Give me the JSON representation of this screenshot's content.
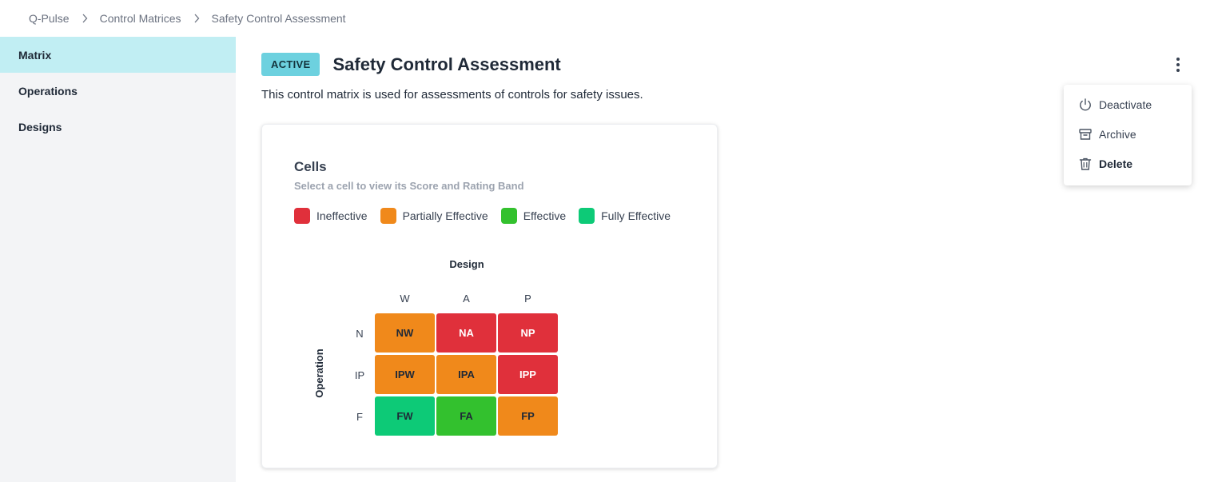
{
  "breadcrumb": [
    "Q-Pulse",
    "Control Matrices",
    "Safety Control Assessment"
  ],
  "sidebar": {
    "items": [
      {
        "label": "Matrix",
        "active": true
      },
      {
        "label": "Operations",
        "active": false
      },
      {
        "label": "Designs",
        "active": false
      }
    ]
  },
  "header": {
    "status": "ACTIVE",
    "title": "Safety Control Assessment",
    "description": "This control matrix is used for assessments of controls for safety issues."
  },
  "menu": {
    "items": [
      {
        "label": "Deactivate",
        "icon": "power-icon"
      },
      {
        "label": "Archive",
        "icon": "archive-icon"
      },
      {
        "label": "Delete",
        "icon": "trash-icon"
      }
    ]
  },
  "cells_card": {
    "title": "Cells",
    "subtitle": "Select a cell to view its Score and Rating Band",
    "legend": [
      {
        "label": "Ineffective",
        "color": "#e0303b"
      },
      {
        "label": "Partially Effective",
        "color": "#f0891b"
      },
      {
        "label": "Effective",
        "color": "#33c12e"
      },
      {
        "label": "Fully Effective",
        "color": "#0dca77"
      }
    ],
    "x_axis_title": "Design",
    "y_axis_title": "Operation",
    "columns": [
      "W",
      "A",
      "P"
    ],
    "rows": [
      "N",
      "IP",
      "F"
    ],
    "cells": [
      [
        {
          "label": "NW",
          "color": "#f0891b",
          "text_color": "#1f2937"
        },
        {
          "label": "NA",
          "color": "#e0303b",
          "text_color": "#ffffff"
        },
        {
          "label": "NP",
          "color": "#e0303b",
          "text_color": "#ffffff"
        }
      ],
      [
        {
          "label": "IPW",
          "color": "#f0891b",
          "text_color": "#1f2937"
        },
        {
          "label": "IPA",
          "color": "#f0891b",
          "text_color": "#1f2937"
        },
        {
          "label": "IPP",
          "color": "#e0303b",
          "text_color": "#ffffff"
        }
      ],
      [
        {
          "label": "FW",
          "color": "#0dca77",
          "text_color": "#1f2937"
        },
        {
          "label": "FA",
          "color": "#33c12e",
          "text_color": "#1f2937"
        },
        {
          "label": "FP",
          "color": "#f0891b",
          "text_color": "#1f2937"
        }
      ]
    ]
  }
}
